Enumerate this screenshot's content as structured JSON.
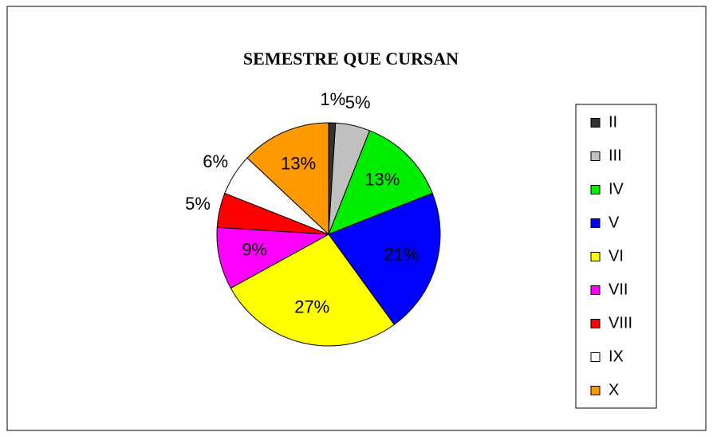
{
  "chart_data": {
    "type": "pie",
    "title": "SEMESTRE QUE CURSAN",
    "categories": [
      "II",
      "III",
      "IV",
      "V",
      "VI",
      "VII",
      "VIII",
      "IX",
      "X"
    ],
    "values": [
      1,
      5,
      13,
      21,
      27,
      9,
      5,
      6,
      13
    ],
    "value_labels": [
      "1%",
      "5%",
      "13%",
      "21%",
      "27%",
      "9%",
      "5%",
      "6%",
      "13%"
    ],
    "colors": [
      "#333333",
      "#c0c0c0",
      "#00ee00",
      "#0000ff",
      "#ffff00",
      "#ff00ff",
      "#ff0000",
      "#ffffff",
      "#ff9900"
    ],
    "legend": "right"
  }
}
